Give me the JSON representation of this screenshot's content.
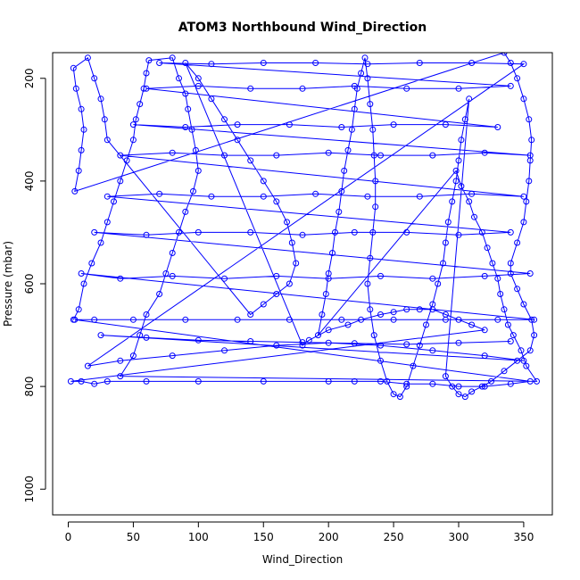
{
  "chart_data": {
    "type": "scatter",
    "title": "ATOM3 Northbound Wind_Direction",
    "xlabel": "Wind_Direction",
    "ylabel": "Pressure (mbar)",
    "xlim": [
      -12,
      372
    ],
    "ylim": [
      1050,
      150
    ],
    "y_reversed": true,
    "x_ticks": [
      0,
      50,
      100,
      150,
      200,
      250,
      300,
      350
    ],
    "y_ticks": [
      200,
      400,
      600,
      800,
      1000
    ],
    "grid": false,
    "legend": "none",
    "series_color": "#0000ff",
    "marker": "open-circle",
    "connected_by_lines": true,
    "series": [
      {
        "points": [
          [
            4,
            670
          ],
          [
            8,
            650
          ],
          [
            12,
            600
          ],
          [
            18,
            560
          ],
          [
            25,
            520
          ],
          [
            30,
            480
          ],
          [
            35,
            440
          ],
          [
            40,
            400
          ],
          [
            45,
            360
          ],
          [
            50,
            320
          ],
          [
            52,
            280
          ],
          [
            55,
            250
          ],
          [
            58,
            220
          ],
          [
            60,
            190
          ],
          [
            62,
            165
          ],
          [
            80,
            160
          ],
          [
            85,
            200
          ],
          [
            90,
            230
          ],
          [
            92,
            260
          ],
          [
            95,
            300
          ],
          [
            98,
            340
          ],
          [
            100,
            380
          ],
          [
            96,
            420
          ],
          [
            90,
            460
          ],
          [
            85,
            500
          ],
          [
            80,
            540
          ],
          [
            75,
            580
          ],
          [
            70,
            620
          ],
          [
            60,
            660
          ],
          [
            55,
            700
          ],
          [
            50,
            740
          ],
          [
            40,
            780
          ],
          [
            360,
            790
          ],
          [
            352,
            760
          ],
          [
            348,
            730
          ],
          [
            342,
            700
          ],
          [
            338,
            680
          ],
          [
            335,
            650
          ],
          [
            332,
            620
          ],
          [
            330,
            590
          ],
          [
            326,
            560
          ],
          [
            322,
            530
          ],
          [
            318,
            500
          ],
          [
            312,
            470
          ],
          [
            308,
            440
          ],
          [
            302,
            410
          ],
          [
            298,
            380
          ],
          [
            192,
            700
          ],
          [
            195,
            660
          ],
          [
            198,
            620
          ],
          [
            200,
            580
          ],
          [
            203,
            540
          ],
          [
            205,
            500
          ],
          [
            208,
            460
          ],
          [
            210,
            420
          ],
          [
            212,
            380
          ],
          [
            215,
            340
          ],
          [
            218,
            300
          ],
          [
            220,
            260
          ],
          [
            222,
            220
          ],
          [
            225,
            190
          ],
          [
            228,
            160
          ],
          [
            230,
            200
          ],
          [
            232,
            250
          ],
          [
            234,
            300
          ],
          [
            235,
            350
          ],
          [
            236,
            400
          ],
          [
            236,
            450
          ],
          [
            234,
            500
          ],
          [
            232,
            550
          ],
          [
            230,
            600
          ],
          [
            232,
            650
          ],
          [
            235,
            700
          ],
          [
            240,
            750
          ],
          [
            245,
            790
          ],
          [
            250,
            815
          ],
          [
            255,
            820
          ],
          [
            260,
            800
          ],
          [
            265,
            760
          ],
          [
            270,
            720
          ],
          [
            275,
            680
          ],
          [
            280,
            640
          ],
          [
            284,
            600
          ],
          [
            288,
            560
          ],
          [
            290,
            520
          ],
          [
            292,
            480
          ],
          [
            295,
            440
          ],
          [
            298,
            400
          ],
          [
            300,
            360
          ],
          [
            302,
            320
          ],
          [
            305,
            280
          ],
          [
            308,
            240
          ],
          [
            290,
            780
          ],
          [
            295,
            800
          ],
          [
            300,
            815
          ],
          [
            305,
            820
          ],
          [
            310,
            810
          ],
          [
            318,
            800
          ],
          [
            325,
            790
          ],
          [
            335,
            770
          ],
          [
            345,
            750
          ],
          [
            355,
            730
          ],
          [
            358,
            700
          ],
          [
            356,
            670
          ],
          [
            350,
            640
          ],
          [
            345,
            610
          ],
          [
            340,
            580
          ],
          [
            340,
            560
          ],
          [
            345,
            520
          ],
          [
            350,
            480
          ],
          [
            352,
            440
          ],
          [
            354,
            400
          ],
          [
            355,
            360
          ],
          [
            356,
            320
          ],
          [
            354,
            280
          ],
          [
            350,
            240
          ],
          [
            345,
            200
          ],
          [
            340,
            170
          ],
          [
            335,
            150
          ],
          [
            5,
            420
          ],
          [
            8,
            380
          ],
          [
            10,
            340
          ],
          [
            12,
            300
          ],
          [
            10,
            260
          ],
          [
            6,
            220
          ],
          [
            4,
            180
          ],
          [
            15,
            160
          ],
          [
            20,
            200
          ],
          [
            25,
            240
          ],
          [
            28,
            280
          ],
          [
            30,
            320
          ],
          [
            140,
            660
          ],
          [
            150,
            640
          ],
          [
            160,
            620
          ],
          [
            170,
            600
          ],
          [
            175,
            560
          ],
          [
            172,
            520
          ],
          [
            168,
            480
          ],
          [
            160,
            440
          ],
          [
            150,
            400
          ],
          [
            140,
            360
          ],
          [
            130,
            320
          ],
          [
            120,
            280
          ],
          [
            110,
            240
          ],
          [
            100,
            200
          ],
          [
            90,
            170
          ],
          [
            180,
            720
          ],
          [
            185,
            710
          ],
          [
            200,
            690
          ],
          [
            215,
            680
          ],
          [
            225,
            670
          ],
          [
            240,
            660
          ],
          [
            250,
            655
          ],
          [
            260,
            650
          ],
          [
            270,
            650
          ],
          [
            280,
            650
          ],
          [
            290,
            660
          ],
          [
            300,
            670
          ],
          [
            310,
            680
          ],
          [
            320,
            690
          ],
          [
            2,
            790
          ],
          [
            10,
            790
          ],
          [
            20,
            795
          ],
          [
            30,
            790
          ],
          [
            60,
            790
          ],
          [
            100,
            790
          ],
          [
            150,
            790
          ],
          [
            200,
            790
          ],
          [
            220,
            790
          ],
          [
            240,
            790
          ],
          [
            260,
            795
          ],
          [
            280,
            795
          ],
          [
            300,
            800
          ],
          [
            320,
            800
          ],
          [
            340,
            795
          ],
          [
            355,
            790
          ],
          [
            5,
            670
          ],
          [
            20,
            670
          ],
          [
            50,
            670
          ],
          [
            90,
            670
          ],
          [
            130,
            670
          ],
          [
            170,
            670
          ],
          [
            210,
            670
          ],
          [
            250,
            670
          ],
          [
            290,
            670
          ],
          [
            330,
            670
          ],
          [
            358,
            670
          ],
          [
            10,
            580
          ],
          [
            40,
            590
          ],
          [
            80,
            585
          ],
          [
            120,
            590
          ],
          [
            160,
            585
          ],
          [
            200,
            590
          ],
          [
            240,
            585
          ],
          [
            280,
            590
          ],
          [
            320,
            585
          ],
          [
            355,
            580
          ],
          [
            20,
            500
          ],
          [
            60,
            505
          ],
          [
            100,
            500
          ],
          [
            140,
            500
          ],
          [
            180,
            505
          ],
          [
            220,
            500
          ],
          [
            260,
            500
          ],
          [
            300,
            505
          ],
          [
            340,
            500
          ],
          [
            30,
            430
          ],
          [
            70,
            425
          ],
          [
            110,
            430
          ],
          [
            150,
            430
          ],
          [
            190,
            425
          ],
          [
            230,
            430
          ],
          [
            270,
            430
          ],
          [
            310,
            425
          ],
          [
            350,
            430
          ],
          [
            40,
            350
          ],
          [
            80,
            345
          ],
          [
            120,
            350
          ],
          [
            160,
            350
          ],
          [
            200,
            345
          ],
          [
            240,
            350
          ],
          [
            280,
            350
          ],
          [
            320,
            345
          ],
          [
            355,
            350
          ],
          [
            50,
            290
          ],
          [
            90,
            295
          ],
          [
            130,
            290
          ],
          [
            170,
            290
          ],
          [
            210,
            295
          ],
          [
            250,
            290
          ],
          [
            290,
            290
          ],
          [
            330,
            295
          ],
          [
            60,
            220
          ],
          [
            100,
            215
          ],
          [
            140,
            220
          ],
          [
            180,
            220
          ],
          [
            220,
            215
          ],
          [
            260,
            220
          ],
          [
            300,
            220
          ],
          [
            340,
            215
          ],
          [
            70,
            170
          ],
          [
            110,
            172
          ],
          [
            150,
            170
          ],
          [
            190,
            170
          ],
          [
            230,
            172
          ],
          [
            270,
            170
          ],
          [
            310,
            170
          ],
          [
            350,
            172
          ],
          [
            15,
            760
          ],
          [
            40,
            750
          ],
          [
            80,
            740
          ],
          [
            120,
            730
          ],
          [
            160,
            720
          ],
          [
            200,
            715
          ],
          [
            240,
            720
          ],
          [
            280,
            730
          ],
          [
            320,
            740
          ],
          [
            350,
            750
          ],
          [
            25,
            700
          ],
          [
            60,
            705
          ],
          [
            100,
            710
          ],
          [
            140,
            712
          ],
          [
            180,
            714
          ],
          [
            220,
            716
          ],
          [
            260,
            718
          ],
          [
            300,
            715
          ],
          [
            340,
            712
          ]
        ]
      }
    ]
  }
}
